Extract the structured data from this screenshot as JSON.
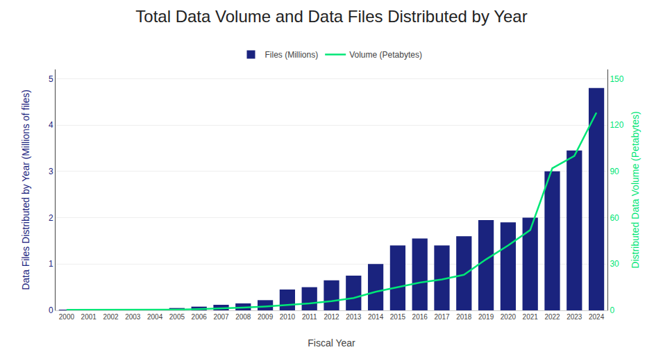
{
  "chart_data": {
    "type": "bar",
    "title": "Total Data Volume and Data Files Distributed by Year",
    "xlabel": "Fiscal Year",
    "ylabel": "Data Files Distributed by Year (Millions of files)",
    "y2label": "Distributed Data Volume (Petabytes)",
    "categories": [
      "2000",
      "2001",
      "2002",
      "2003",
      "2004",
      "2005",
      "2006",
      "2007",
      "2008",
      "2009",
      "2010",
      "2011",
      "2012",
      "2013",
      "2014",
      "2015",
      "2016",
      "2017",
      "2018",
      "2019",
      "2020",
      "2021",
      "2022",
      "2023",
      "2024"
    ],
    "series": [
      {
        "name": "Files (Millions)",
        "type": "bar",
        "color": "#1a237e",
        "values": [
          0.01,
          0.01,
          0.02,
          0.02,
          0.03,
          0.05,
          0.08,
          0.12,
          0.15,
          0.22,
          0.45,
          0.5,
          0.65,
          0.75,
          1.0,
          1.4,
          1.55,
          1.4,
          1.6,
          1.95,
          1.9,
          2.0,
          3.0,
          3.45,
          4.8
        ]
      },
      {
        "name": "Volume (Petabytes)",
        "type": "line",
        "color": "#00e676",
        "axis": "y2",
        "values": [
          0.3,
          0.3,
          0.3,
          0.3,
          0.3,
          0.5,
          0.8,
          1.2,
          1.8,
          2.5,
          3.5,
          4.5,
          6.0,
          8.0,
          12.0,
          15.0,
          18.0,
          20.0,
          23.0,
          33.0,
          42.0,
          52.0,
          92.0,
          100.0,
          128.0
        ]
      }
    ],
    "ylim": [
      0,
      5.2
    ],
    "yticks": [
      0,
      1,
      2,
      3,
      4,
      5
    ],
    "y2lim": [
      0,
      156
    ],
    "y2ticks": [
      0,
      30,
      60,
      90,
      120,
      150
    ],
    "grid": true,
    "legend": "top"
  }
}
